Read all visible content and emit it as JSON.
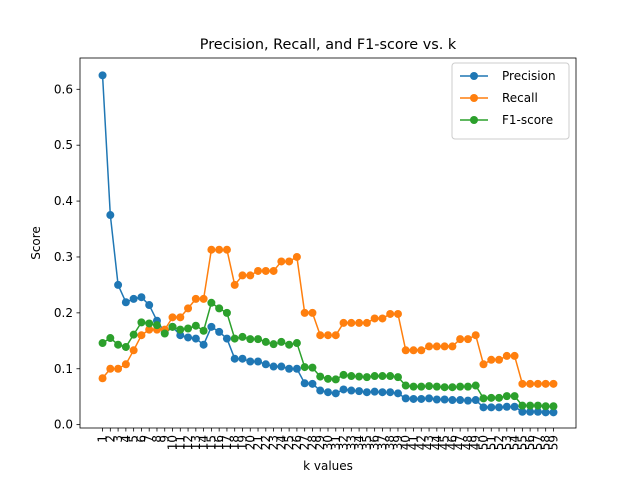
{
  "chart_data": {
    "type": "line",
    "title": "Precision, Recall, and F1-score vs. k",
    "xlabel": "k values",
    "ylabel": "Score",
    "x": [
      1,
      2,
      3,
      4,
      5,
      6,
      7,
      8,
      9,
      10,
      11,
      12,
      13,
      14,
      15,
      16,
      17,
      18,
      19,
      20,
      21,
      22,
      23,
      24,
      25,
      26,
      27,
      28,
      29,
      30,
      31,
      32,
      33,
      34,
      35,
      36,
      37,
      38,
      39,
      40,
      41,
      42,
      43,
      44,
      45,
      46,
      47,
      48,
      49,
      50,
      51,
      52,
      53,
      54,
      55,
      56,
      57,
      58,
      59
    ],
    "x_ticks": [
      1,
      2,
      3,
      4,
      5,
      6,
      7,
      8,
      9,
      10,
      11,
      12,
      13,
      14,
      15,
      16,
      17,
      18,
      19,
      20,
      21,
      22,
      23,
      24,
      25,
      26,
      27,
      28,
      29,
      30,
      31,
      32,
      33,
      34,
      35,
      36,
      37,
      38,
      39,
      40,
      41,
      42,
      43,
      44,
      45,
      46,
      47,
      48,
      49,
      50,
      51,
      52,
      53,
      54,
      55,
      56,
      57,
      58,
      59
    ],
    "ylim": [
      -0.006,
      0.656
    ],
    "y_ticks": [
      0.0,
      0.1,
      0.2,
      0.3,
      0.4,
      0.5,
      0.6
    ],
    "y_tick_labels": [
      "0.0",
      "0.1",
      "0.2",
      "0.3",
      "0.4",
      "0.5",
      "0.6"
    ],
    "grid": false,
    "legend_position": "top-right",
    "series": [
      {
        "name": "Precision",
        "color": "#1f77b4",
        "values": [
          0.625,
          0.375,
          0.25,
          0.219,
          0.225,
          0.228,
          0.214,
          0.186,
          0.165,
          0.175,
          0.16,
          0.156,
          0.154,
          0.143,
          0.175,
          0.166,
          0.154,
          0.118,
          0.118,
          0.113,
          0.113,
          0.108,
          0.104,
          0.104,
          0.1,
          0.1,
          0.074,
          0.073,
          0.061,
          0.058,
          0.056,
          0.063,
          0.061,
          0.06,
          0.058,
          0.059,
          0.058,
          0.058,
          0.056,
          0.047,
          0.046,
          0.046,
          0.047,
          0.045,
          0.045,
          0.044,
          0.044,
          0.043,
          0.044,
          0.031,
          0.031,
          0.031,
          0.032,
          0.032,
          0.023,
          0.023,
          0.023,
          0.022,
          0.022
        ]
      },
      {
        "name": "Recall",
        "color": "#ff7f0e",
        "values": [
          0.083,
          0.1,
          0.1,
          0.108,
          0.133,
          0.16,
          0.17,
          0.17,
          0.17,
          0.192,
          0.192,
          0.208,
          0.225,
          0.225,
          0.313,
          0.313,
          0.313,
          0.25,
          0.267,
          0.267,
          0.275,
          0.275,
          0.275,
          0.292,
          0.292,
          0.3,
          0.2,
          0.2,
          0.16,
          0.16,
          0.16,
          0.182,
          0.182,
          0.182,
          0.182,
          0.19,
          0.19,
          0.198,
          0.198,
          0.133,
          0.133,
          0.133,
          0.14,
          0.14,
          0.14,
          0.14,
          0.153,
          0.153,
          0.16,
          0.108,
          0.116,
          0.116,
          0.123,
          0.123,
          0.073,
          0.073,
          0.073,
          0.073,
          0.073
        ]
      },
      {
        "name": "F1-score",
        "color": "#2ca02c",
        "values": [
          0.146,
          0.155,
          0.143,
          0.139,
          0.161,
          0.183,
          0.181,
          0.178,
          0.163,
          0.175,
          0.17,
          0.172,
          0.177,
          0.168,
          0.218,
          0.208,
          0.2,
          0.154,
          0.157,
          0.153,
          0.153,
          0.148,
          0.144,
          0.148,
          0.143,
          0.146,
          0.103,
          0.102,
          0.086,
          0.082,
          0.081,
          0.089,
          0.087,
          0.086,
          0.085,
          0.087,
          0.087,
          0.087,
          0.085,
          0.07,
          0.068,
          0.068,
          0.069,
          0.068,
          0.067,
          0.067,
          0.068,
          0.068,
          0.07,
          0.047,
          0.048,
          0.048,
          0.051,
          0.051,
          0.034,
          0.034,
          0.034,
          0.033,
          0.033
        ]
      }
    ]
  }
}
